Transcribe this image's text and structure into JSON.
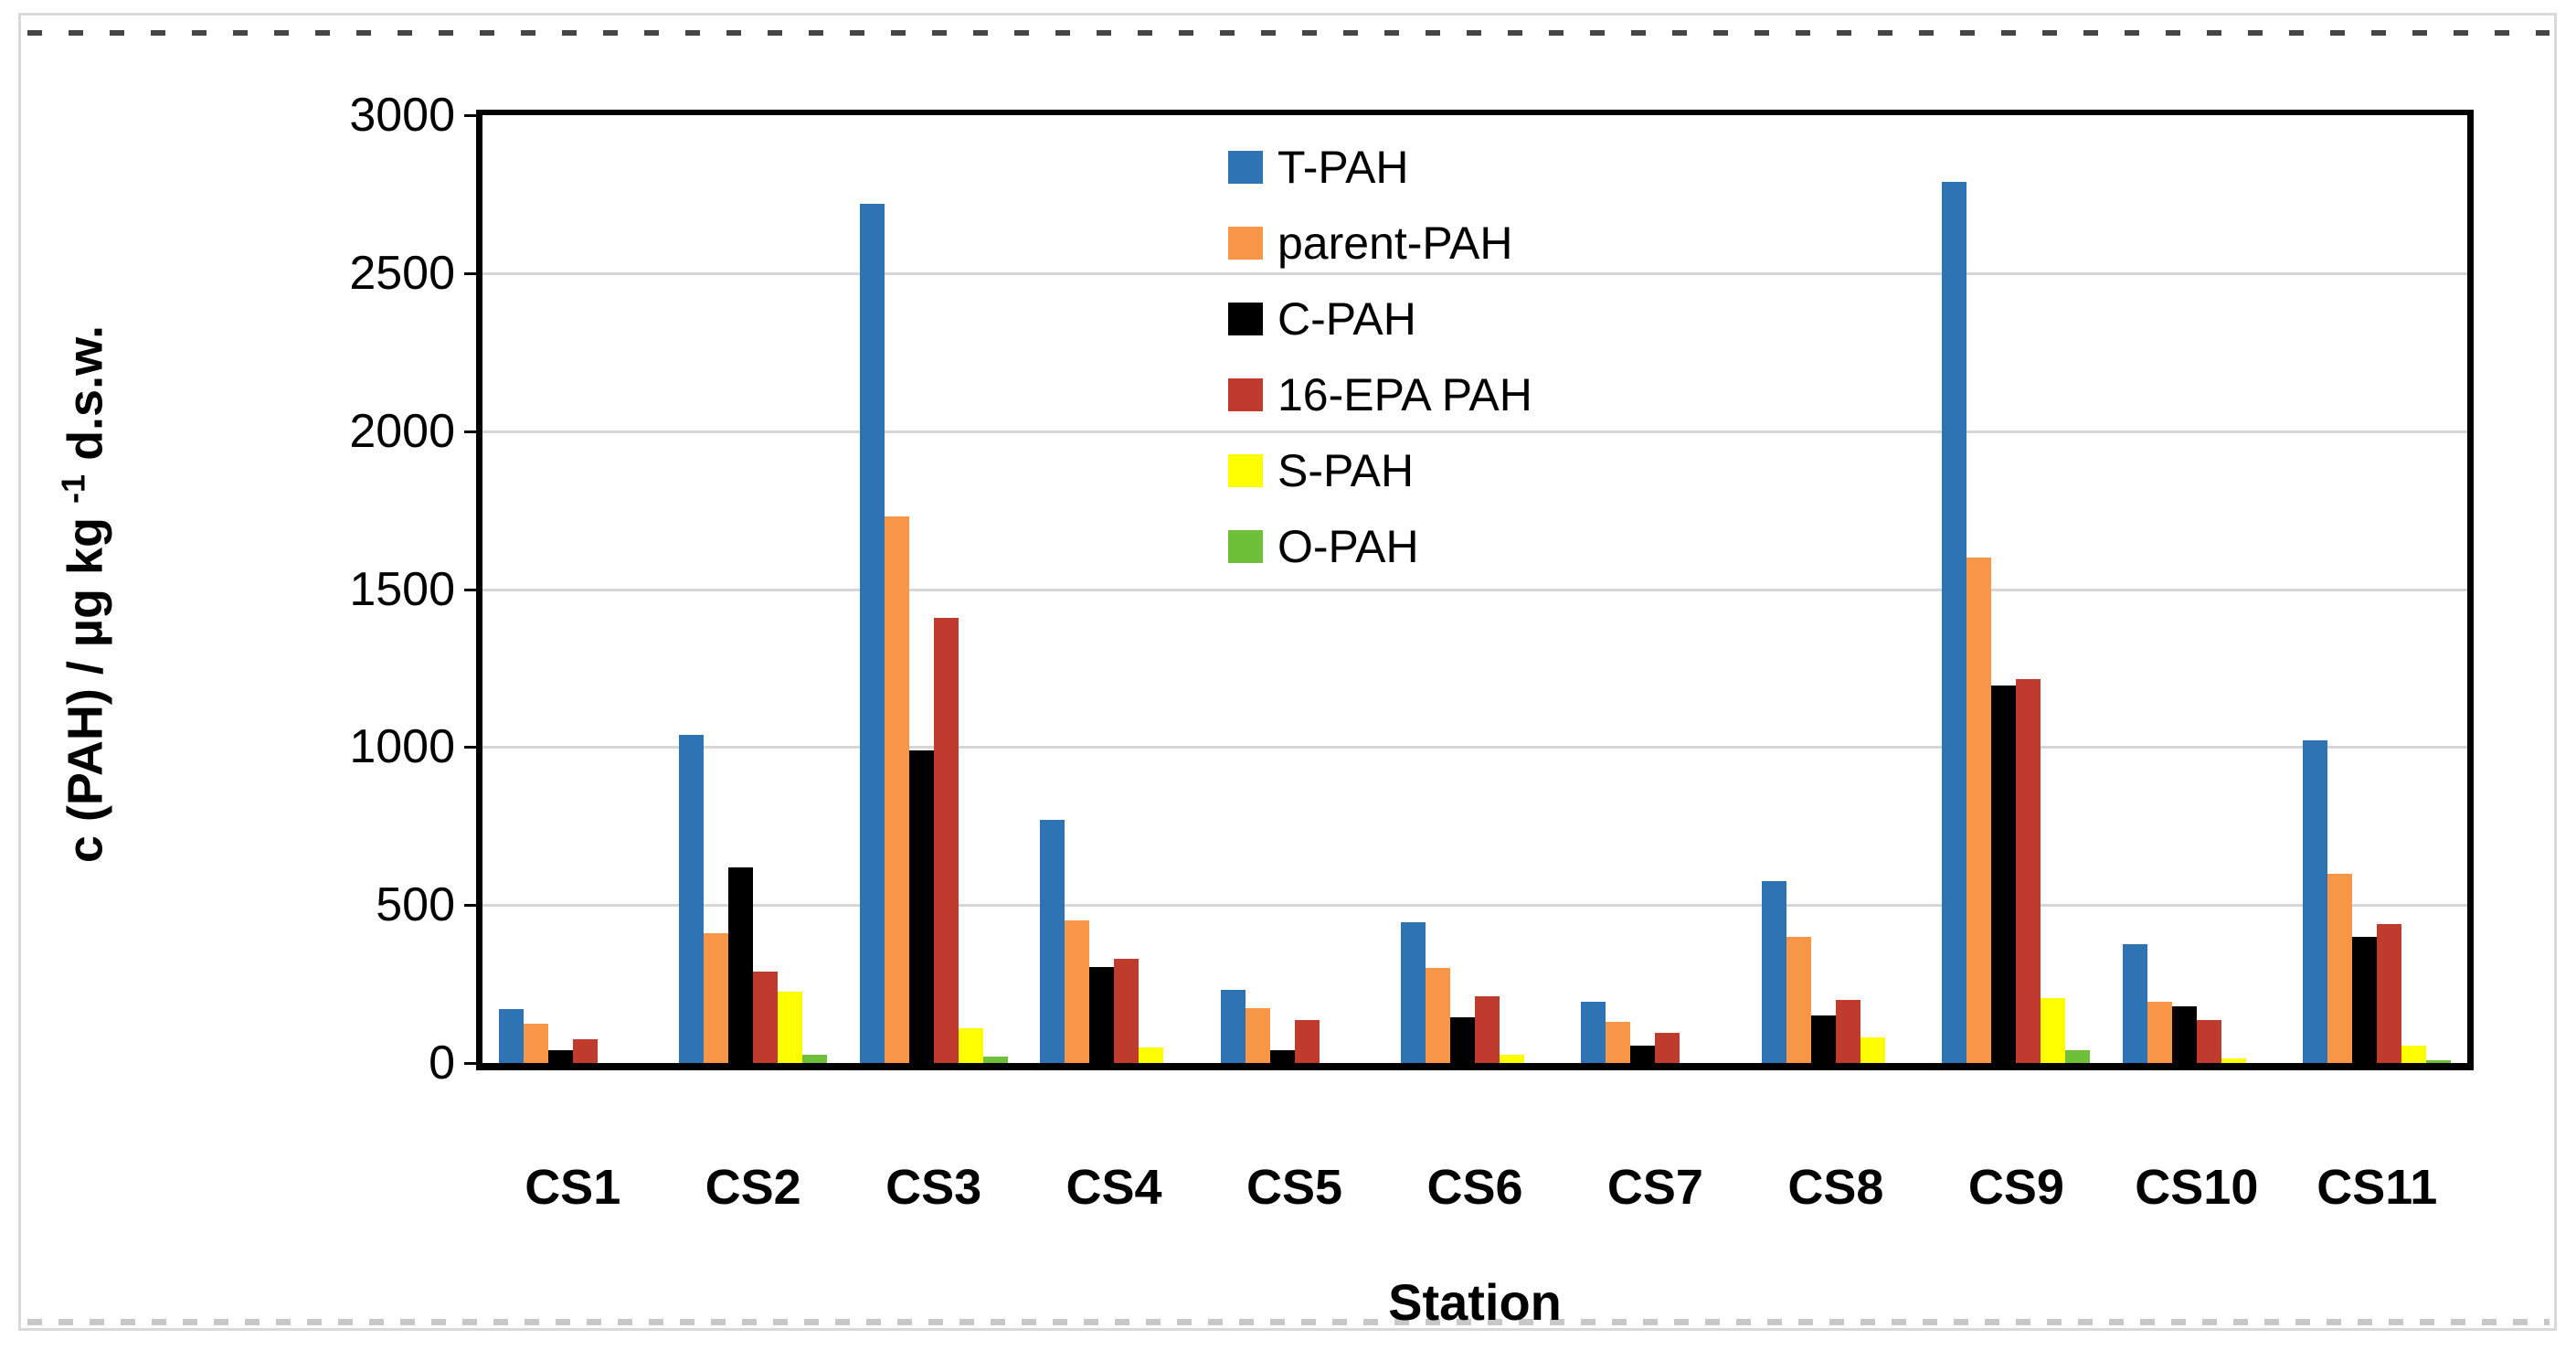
{
  "chart_data": {
    "type": "bar",
    "title": "",
    "xlabel": "Station",
    "ylabel": "c (PAH) / µg kg -1 d.s.w.",
    "ylabel_pre": "c (PAH) / µg kg ",
    "ylabel_sup": "-1",
    "ylabel_post": " d.s.w.",
    "categories": [
      "CS1",
      "CS2",
      "CS3",
      "CS4",
      "CS5",
      "CS6",
      "CS7",
      "CS8",
      "CS9",
      "CS10",
      "CS11"
    ],
    "series": [
      {
        "name": "T-PAH",
        "color": "#2E74B5",
        "values": [
          170,
          1040,
          2720,
          770,
          230,
          445,
          195,
          575,
          2790,
          375,
          1020
        ]
      },
      {
        "name": "parent-PAH",
        "color": "#F79646",
        "values": [
          125,
          410,
          1730,
          450,
          175,
          300,
          130,
          400,
          1600,
          195,
          600
        ]
      },
      {
        "name": "C-PAH",
        "color": "#000000",
        "values": [
          40,
          620,
          990,
          305,
          40,
          145,
          55,
          150,
          1195,
          180,
          400
        ]
      },
      {
        "name": "16-EPA PAH",
        "color": "#BE3B2D",
        "values": [
          75,
          290,
          1410,
          330,
          135,
          210,
          95,
          200,
          1215,
          135,
          440
        ]
      },
      {
        "name": "S-PAH",
        "color": "#FFFF00",
        "values": [
          0,
          225,
          110,
          50,
          0,
          25,
          0,
          80,
          205,
          15,
          55
        ]
      },
      {
        "name": "O-PAH",
        "color": "#6EC038",
        "values": [
          0,
          25,
          20,
          0,
          0,
          0,
          0,
          0,
          40,
          0,
          10
        ]
      }
    ],
    "ylim": [
      0,
      3000
    ],
    "yticks": [
      3000,
      2500,
      2000,
      1500,
      1000,
      500,
      0
    ],
    "grid": true,
    "legend_position": "inside-top-center"
  },
  "colors": {
    "grid": "#D6D6D6",
    "axis": "#000000",
    "figure_border": "#D9D9D9",
    "top_dash": "#454545",
    "bottom_dash": "#C8C8C8",
    "background": "#FFFFFF"
  }
}
